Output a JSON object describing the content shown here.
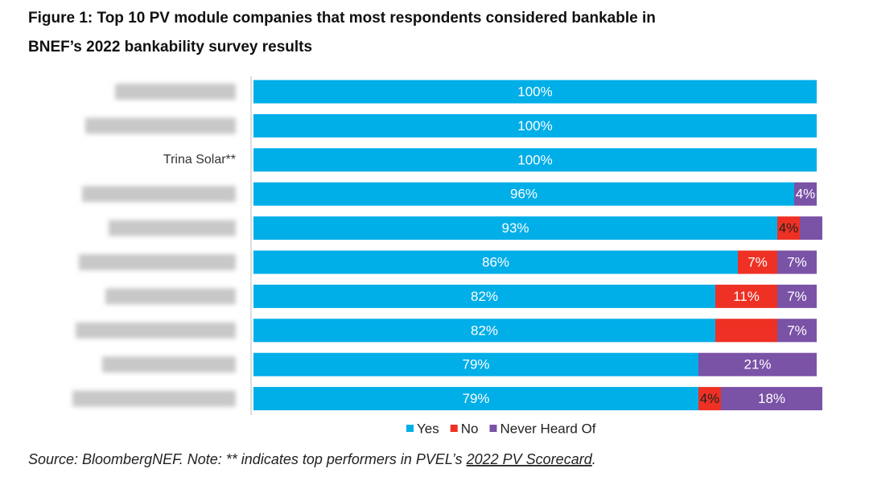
{
  "chart_data": {
    "type": "stacked-barh",
    "title": [
      "Figure 1:  Top 10 PV module companies that most respondents considered bankable in",
      "BNEF’s 2022 bankability survey results"
    ],
    "categories": [
      null,
      null,
      "Trina Solar**",
      null,
      null,
      null,
      null,
      null,
      null,
      null
    ],
    "series": [
      {
        "name": "Yes",
        "color": "#00aee8",
        "values": [
          100,
          100,
          100,
          96,
          93,
          86,
          82,
          82,
          79,
          79
        ],
        "value_labels": [
          "100%",
          "100%",
          "100%",
          "96%",
          "93%",
          "86%",
          "82%",
          "82%",
          "79%",
          "79%"
        ]
      },
      {
        "name": "No",
        "color": "#ee3124",
        "values": [
          0,
          0,
          0,
          0,
          4,
          7,
          11,
          11,
          0,
          4
        ],
        "value_labels": [
          null,
          null,
          null,
          null,
          "4%",
          "7%",
          "11%",
          null,
          null,
          "4%"
        ]
      },
      {
        "name": "Never Heard Of",
        "color": "#7a52a6",
        "values": [
          0,
          0,
          0,
          4,
          4,
          7,
          7,
          7,
          21,
          18
        ],
        "value_labels": [
          null,
          null,
          null,
          "4%",
          null,
          "7%",
          "7%",
          "7%",
          "21%",
          "18%"
        ]
      }
    ],
    "xlim": [
      0,
      100
    ],
    "source": [
      "Source: BloombergNEF. Note: ** indicates top performers in PVEL’s ",
      "2022 PV Scorecard",
      "."
    ]
  }
}
